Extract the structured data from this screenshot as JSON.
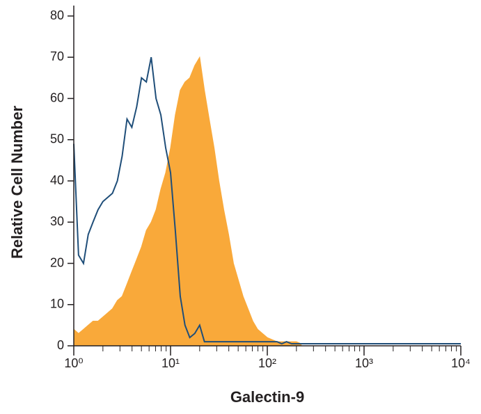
{
  "chart_data": {
    "type": "line",
    "x_label": "Galectin-9",
    "y_label": "Relative Cell Number",
    "xscale": "log",
    "xlim": [
      1,
      10000
    ],
    "ylim": [
      0,
      80
    ],
    "xticks": [
      {
        "value": 1,
        "label": "10⁰"
      },
      {
        "value": 10,
        "label": "10¹"
      },
      {
        "value": 100,
        "label": "10²"
      },
      {
        "value": 1000,
        "label": "10³"
      },
      {
        "value": 10000,
        "label": "10⁴"
      }
    ],
    "xminorticks": [
      2,
      3,
      4,
      5,
      6,
      7,
      8,
      9,
      20,
      30,
      40,
      50,
      60,
      70,
      80,
      90,
      200,
      300,
      400,
      500,
      600,
      700,
      800,
      900,
      2000,
      3000,
      4000,
      5000,
      6000,
      7000,
      8000,
      9000
    ],
    "yticks": [
      0,
      10,
      20,
      30,
      40,
      50,
      60,
      70,
      80
    ],
    "x": [
      1,
      1.12,
      1.26,
      1.41,
      1.58,
      1.78,
      2,
      2.24,
      2.51,
      2.82,
      3.16,
      3.55,
      3.98,
      4.47,
      5.01,
      5.62,
      6.31,
      7.08,
      7.94,
      8.91,
      10,
      11.2,
      12.6,
      14.1,
      15.8,
      17.8,
      20,
      22.4,
      25.1,
      28.2,
      31.6,
      35.5,
      39.8,
      44.7,
      50.1,
      56.2,
      63.1,
      70.8,
      79.4,
      89.1,
      100,
      112,
      126,
      141,
      158,
      178,
      200,
      224,
      1000,
      10000
    ],
    "series": [
      {
        "color": "#f9a93a",
        "fill": true,
        "values": [
          4,
          3,
          4,
          5,
          6,
          6,
          7,
          8,
          9,
          11,
          12,
          15,
          18,
          21,
          24,
          28,
          30,
          33,
          38,
          42,
          48,
          56,
          62,
          64,
          65,
          68,
          70,
          62,
          55,
          48,
          40,
          33,
          27,
          20,
          16,
          12,
          9,
          6,
          4,
          3,
          2,
          1.5,
          1,
          1,
          1,
          1,
          1,
          0.5,
          null,
          null
        ]
      },
      {
        "color": "#1f4e79",
        "fill": false,
        "values": [
          49,
          22,
          20,
          27,
          30,
          33,
          35,
          36,
          37,
          40,
          46,
          55,
          53,
          58,
          65,
          64,
          70,
          60,
          56,
          48,
          42,
          28,
          12,
          5,
          2,
          3,
          5,
          1,
          1,
          1,
          1,
          1,
          1,
          1,
          1,
          1,
          1,
          1,
          1,
          1,
          1,
          1,
          1,
          0.5,
          1,
          0.5,
          0.5,
          0.5,
          0.5,
          0.5
        ]
      }
    ]
  }
}
